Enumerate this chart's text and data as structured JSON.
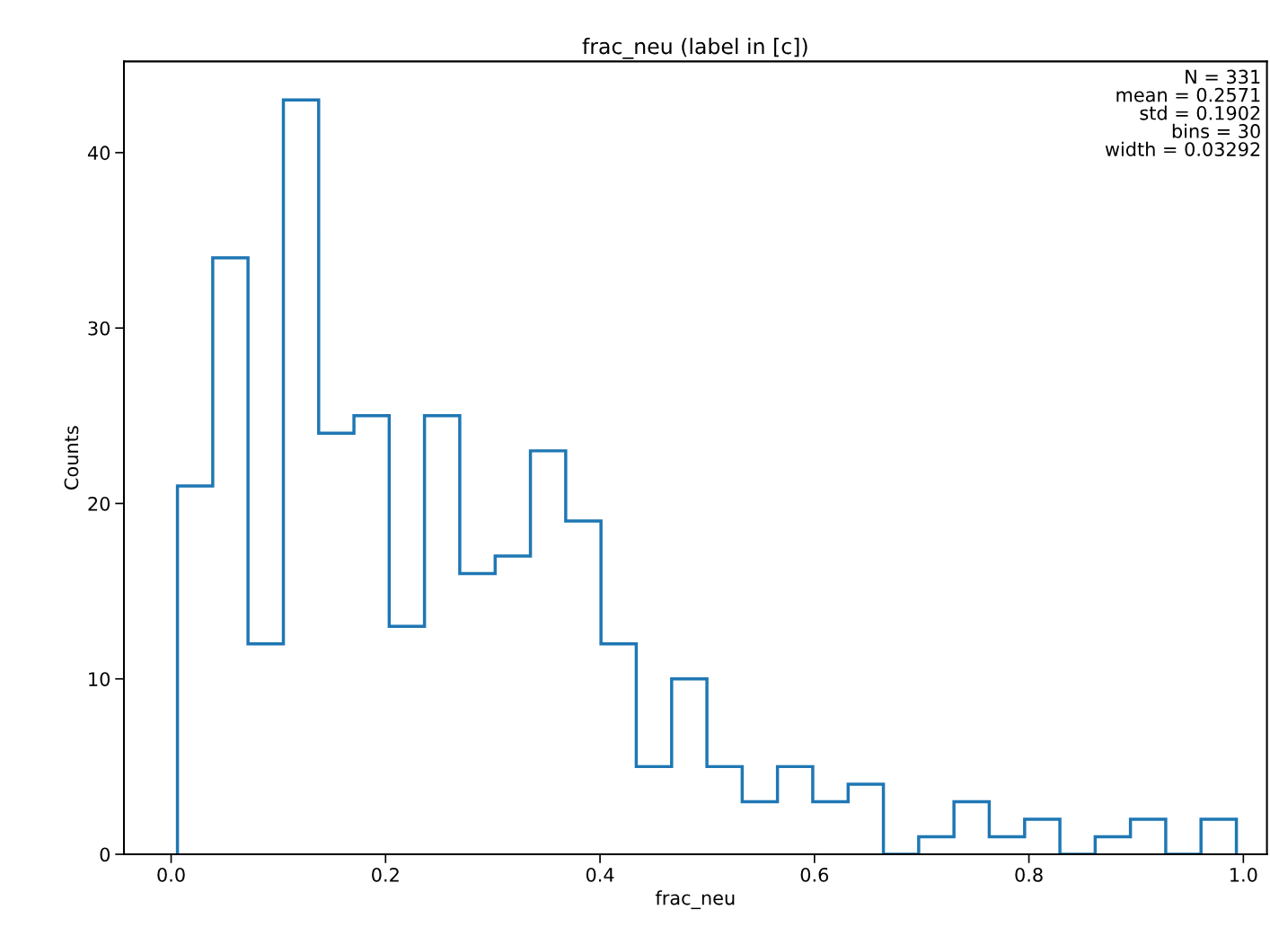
{
  "chart_data": {
    "type": "histogram",
    "title": "frac_neu (label in [c])",
    "xlabel": "frac_neu",
    "ylabel": "Counts",
    "bins": [
      0.0059,
      0.0388,
      0.0717,
      0.1047,
      0.1376,
      0.1705,
      0.2034,
      0.2363,
      0.2692,
      0.3022,
      0.3351,
      0.368,
      0.4009,
      0.4338,
      0.4668,
      0.4997,
      0.5326,
      0.5655,
      0.5984,
      0.6314,
      0.6643,
      0.6972,
      0.7301,
      0.763,
      0.796,
      0.8289,
      0.8618,
      0.8947,
      0.9276,
      0.9605,
      0.9935
    ],
    "values": [
      21,
      34,
      12,
      43,
      24,
      25,
      13,
      25,
      16,
      17,
      23,
      19,
      12,
      5,
      10,
      5,
      3,
      5,
      3,
      4,
      0,
      1,
      3,
      1,
      2,
      0,
      1,
      2,
      0,
      2
    ],
    "color": "#1f77b4",
    "xlim": [
      -0.044,
      1.022
    ],
    "xticks": [
      {
        "value": 0,
        "label": "0.0"
      },
      {
        "value": 0.2,
        "label": "0.2"
      },
      {
        "value": 0.4,
        "label": "0.4"
      },
      {
        "value": 0.6,
        "label": "0.6"
      },
      {
        "value": 0.8,
        "label": "0.8"
      },
      {
        "value": 1,
        "label": "1.0"
      }
    ],
    "ylim": [
      0,
      45.2
    ],
    "yticks": [
      0,
      10,
      20,
      30,
      40
    ],
    "grid": false,
    "annotations": [
      "N = 331\nmean = 0.2571\nstd = 0.1902\nbins = 30\nwidth = 0.03292"
    ]
  }
}
